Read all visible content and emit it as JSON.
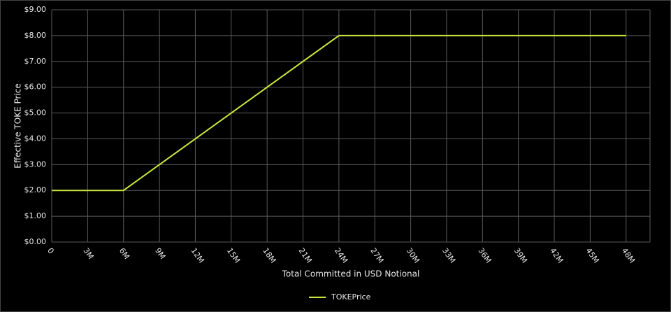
{
  "chart_data": {
    "type": "line",
    "x_label": "Total Committed in USD Notional",
    "y_label": "Effective TOKE Price",
    "x": [
      0,
      6000000,
      24000000,
      48000000
    ],
    "series": [
      {
        "name": "TOKEPrice",
        "color": "#c8e63c",
        "values": [
          2,
          2,
          8,
          8
        ]
      }
    ],
    "xlim": [
      0,
      50000000
    ],
    "xticks": [
      0,
      {
        "value": 3000000,
        "label": "3M"
      },
      {
        "value": 6000000,
        "label": "6M"
      },
      {
        "value": 9000000,
        "label": "9M"
      },
      {
        "value": 12000000,
        "label": "12M"
      },
      {
        "value": 15000000,
        "label": "15M"
      },
      {
        "value": 18000000,
        "label": "18M"
      },
      {
        "value": 21000000,
        "label": "21M"
      },
      {
        "value": 24000000,
        "label": "24M"
      },
      {
        "value": 27000000,
        "label": "27M"
      },
      {
        "value": 30000000,
        "label": "30M"
      },
      {
        "value": 33000000,
        "label": "33M"
      },
      {
        "value": 36000000,
        "label": "36M"
      },
      {
        "value": 39000000,
        "label": "39M"
      },
      {
        "value": 42000000,
        "label": "42M"
      },
      {
        "value": 45000000,
        "label": "45M"
      },
      {
        "value": 48000000,
        "label": "48M"
      }
    ],
    "ylim": [
      0,
      9
    ],
    "yticks": [
      {
        "value": 0,
        "label": "$0.00"
      },
      {
        "value": 1,
        "label": "$1.00"
      },
      {
        "value": 2,
        "label": "$2.00"
      },
      {
        "value": 3,
        "label": "$3.00"
      },
      {
        "value": 4,
        "label": "$4.00"
      },
      {
        "value": 5,
        "label": "$5.00"
      },
      {
        "value": 6,
        "label": "$6.00"
      },
      {
        "value": 7,
        "label": "$7.00"
      },
      {
        "value": 8,
        "label": "$8.00"
      },
      {
        "value": 9,
        "label": "$9.00"
      }
    ],
    "grid": true,
    "legend": "bottom"
  }
}
